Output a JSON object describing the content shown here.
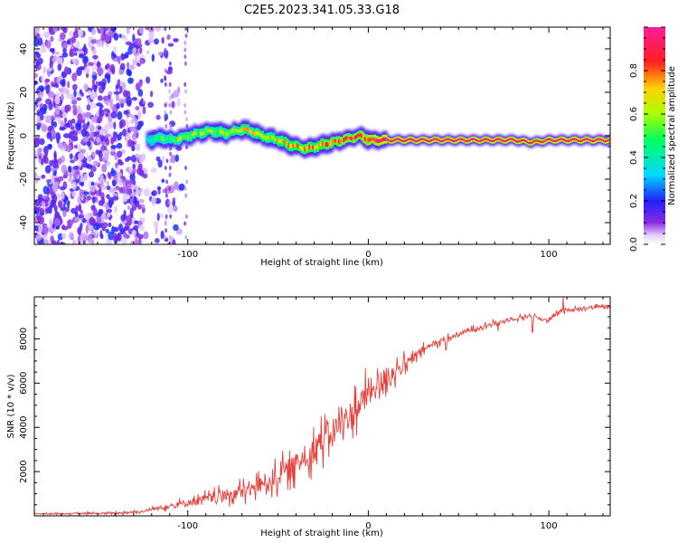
{
  "title": "C2E5.2023.341.05.33.G18",
  "chart_data": [
    {
      "type": "heatmap",
      "xlabel": "Height of straight line (km)",
      "ylabel": "Frequency (Hz)",
      "xlim": [
        -185,
        134
      ],
      "ylim": [
        -50,
        50
      ],
      "x_ticks": [
        -100,
        0,
        100
      ],
      "y_ticks": [
        -40,
        -20,
        0,
        20,
        40
      ],
      "colorbar": {
        "label": "Normalized spectral amplitude",
        "range": [
          0.0,
          1.0
        ],
        "ticks": [
          0.0,
          0.2,
          0.4,
          0.6,
          0.8
        ],
        "colormap": "rainbow (white-purple-blue-cyan-green-yellow-red-magenta)"
      },
      "noise_region_x": [
        -185,
        -103
      ],
      "signal_trace": {
        "x": [
          -123,
          -115,
          -108,
          -100,
          -95,
          -90,
          -85,
          -80,
          -75,
          -70,
          -65,
          -60,
          -55,
          -50,
          -45,
          -40,
          -35,
          -30,
          -25,
          -20,
          -15,
          -10,
          -5,
          0,
          5,
          10,
          20,
          40,
          60,
          80,
          90,
          100,
          110,
          134
        ],
        "frequency": [
          -2,
          -1,
          -2,
          0,
          1,
          2,
          2,
          1,
          2,
          3,
          2,
          0,
          -1,
          -2,
          -4,
          -5,
          -6,
          -5,
          -4,
          -3,
          -2,
          -1,
          0,
          -2,
          -2,
          -2,
          -2,
          -2,
          -2,
          -2,
          -3,
          -2,
          -2,
          -2
        ],
        "amplitude": [
          0.35,
          0.45,
          0.5,
          0.55,
          0.55,
          0.6,
          0.55,
          0.6,
          0.6,
          0.65,
          0.6,
          0.65,
          0.6,
          0.65,
          0.7,
          0.7,
          0.75,
          0.7,
          0.75,
          0.75,
          0.8,
          0.8,
          0.8,
          0.85,
          0.9,
          0.95,
          0.95,
          0.95,
          0.95,
          0.95,
          0.9,
          0.95,
          0.95,
          0.95
        ]
      }
    },
    {
      "type": "line",
      "xlabel": "Height of straight line (km)",
      "ylabel": "SNR (10 * v/v)",
      "xlim": [
        -185,
        134
      ],
      "ylim": [
        0,
        9900
      ],
      "x_ticks": [
        -100,
        0,
        100
      ],
      "y_ticks": [
        2000,
        4000,
        6000,
        8000
      ],
      "color": "#e8403a",
      "trend": {
        "x": [
          -185,
          -160,
          -140,
          -125,
          -115,
          -100,
          -80,
          -65,
          -50,
          -40,
          -30,
          -20,
          -10,
          0,
          10,
          20,
          25,
          30,
          40,
          50,
          60,
          70,
          80,
          90,
          100,
          105,
          110,
          120,
          134
        ],
        "y": [
          100,
          100,
          120,
          200,
          380,
          600,
          900,
          1200,
          1800,
          2300,
          3000,
          3800,
          4500,
          5500,
          6300,
          6800,
          7100,
          7500,
          7900,
          8200,
          8500,
          8700,
          8900,
          9050,
          8800,
          9200,
          9300,
          9400,
          9500
        ]
      },
      "noise_amplitude": {
        "x": [
          -185,
          -125,
          -110,
          -90,
          -70,
          -50,
          -30,
          -10,
          0,
          10,
          20,
          30,
          40,
          60,
          90,
          100,
          134
        ],
        "y": [
          40,
          120,
          250,
          450,
          700,
          1000,
          1300,
          1500,
          1400,
          1000,
          700,
          350,
          250,
          200,
          180,
          160,
          150
        ]
      },
      "spikes": [
        {
          "x": 91,
          "y": 8300
        },
        {
          "x": 43,
          "y": 7500
        },
        {
          "x": 72,
          "y": 8350
        },
        {
          "x": 108,
          "y": 9950
        }
      ]
    }
  ]
}
